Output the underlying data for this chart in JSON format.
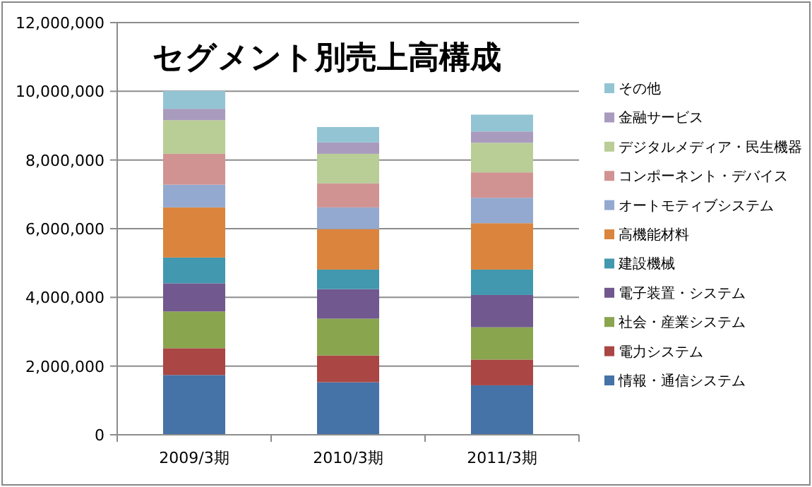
{
  "chart_data": {
    "type": "bar",
    "stacked": true,
    "title": "セグメント別売上高構成",
    "categories": [
      "2009/3期",
      "2010/3期",
      "2011/3期"
    ],
    "series": [
      {
        "name": "情報・通信システム",
        "color": "#4572a7",
        "values": [
          1740000,
          1530000,
          1440000
        ]
      },
      {
        "name": "電力システム",
        "color": "#aa4643",
        "values": [
          780000,
          780000,
          750000
        ]
      },
      {
        "name": "社会・産業システム",
        "color": "#89a54e",
        "values": [
          1070000,
          1070000,
          940000
        ]
      },
      {
        "name": "電子装置・システム",
        "color": "#71588f",
        "values": [
          820000,
          860000,
          940000
        ]
      },
      {
        "name": "建設機械",
        "color": "#4198af",
        "values": [
          750000,
          570000,
          740000
        ]
      },
      {
        "name": "高機能材料",
        "color": "#db843d",
        "values": [
          1460000,
          1180000,
          1350000
        ]
      },
      {
        "name": "オートモティブシステム",
        "color": "#93a9cf",
        "values": [
          660000,
          630000,
          740000
        ]
      },
      {
        "name": "コンポーネント・デバイス",
        "color": "#d19392",
        "values": [
          900000,
          700000,
          740000
        ]
      },
      {
        "name": "デジタルメディア・民生機器",
        "color": "#b9cd96",
        "values": [
          980000,
          860000,
          860000
        ]
      },
      {
        "name": "金融サービス",
        "color": "#a99bbd",
        "values": [
          330000,
          330000,
          330000
        ]
      },
      {
        "name": "その他",
        "color": "#93c4d4",
        "values": [
          520000,
          450000,
          490000
        ]
      }
    ],
    "ylim": [
      0,
      12000000
    ],
    "yticks": [
      {
        "value": 0,
        "label": "0"
      },
      {
        "value": 2000000,
        "label": "2,000,000"
      },
      {
        "value": 4000000,
        "label": "4,000,000"
      },
      {
        "value": 6000000,
        "label": "6,000,000"
      },
      {
        "value": 8000000,
        "label": "8,000,000"
      },
      {
        "value": 10000000,
        "label": "10,000,000"
      },
      {
        "value": 12000000,
        "label": "12,000,000"
      }
    ],
    "grid": "y",
    "legend": "right"
  }
}
